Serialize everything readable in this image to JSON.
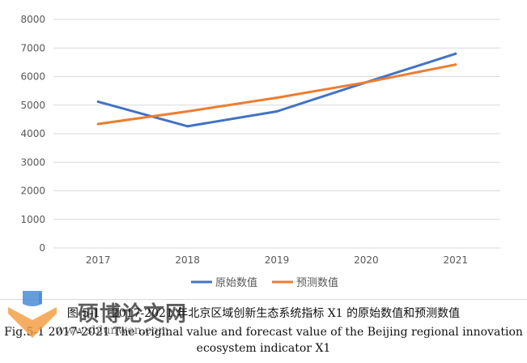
{
  "chart_data": {
    "type": "line",
    "categories": [
      "2017",
      "2018",
      "2019",
      "2020",
      "2021"
    ],
    "series": [
      {
        "name": "原始数值",
        "values": [
          5120,
          4260,
          4780,
          5800,
          6800
        ],
        "color": "#4472c4"
      },
      {
        "name": "预测数值",
        "values": [
          4340,
          4780,
          5260,
          5800,
          6420
        ],
        "color": "#ed7d31"
      }
    ],
    "ylim": [
      0,
      8000
    ],
    "yticks": [
      "0",
      "1000",
      "2000",
      "3000",
      "4000",
      "5000",
      "6000",
      "7000",
      "8000"
    ],
    "grid": true,
    "legend_position": "bottom"
  },
  "caption": {
    "cn": "图 5-1　2017-2021 年北京区域创新生态系统指标 X1 的原始数值和预测数值",
    "en_line1": "Fig.5-1 2017-2021 The original value and forecast value of the Beijing regional innovation",
    "en_line2": "ecosystem indicator X1"
  },
  "watermark": {
    "text": "硕博论文网",
    "url": "www.sblunwen.com"
  }
}
